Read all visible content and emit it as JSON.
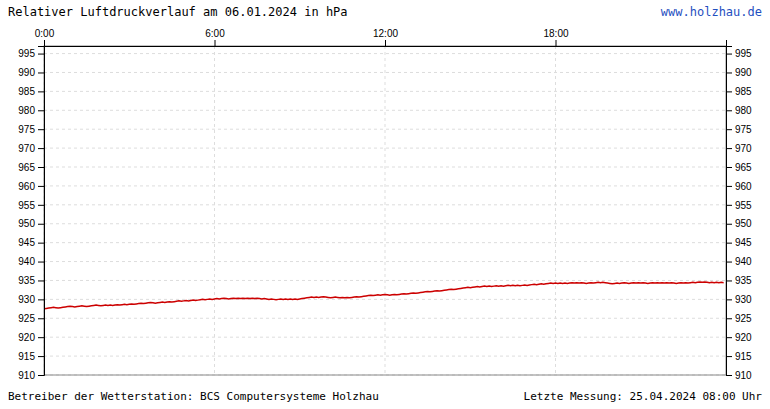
{
  "chart_data": {
    "type": "line",
    "title": "Relativer Luftdruckverlauf am 06.01.2024 in hPa",
    "annotations": [
      "www.holzhau.de",
      "Betreiber der Wetterstation: BCS Computersysteme Holzhau",
      "Letzte Messung: 25.04.2024 08:00 Uhr"
    ],
    "color": "#cc0000",
    "xlim": [
      0,
      288
    ],
    "xticks": [
      {
        "value": 0,
        "label": "0:00"
      },
      {
        "value": 72,
        "label": "6:00"
      },
      {
        "value": 144,
        "label": "12:00"
      },
      {
        "value": 216,
        "label": "18:00"
      }
    ],
    "ylim": [
      910,
      997
    ],
    "yticks": [
      910,
      915,
      920,
      925,
      930,
      935,
      940,
      945,
      950,
      955,
      960,
      965,
      970,
      975,
      980,
      985,
      990,
      995
    ],
    "y2lim": [
      910,
      997
    ],
    "y2ticks": [
      910,
      915,
      920,
      925,
      930,
      935,
      940,
      945,
      950,
      955,
      960,
      965,
      970,
      975,
      980,
      985,
      990,
      995
    ],
    "grid": true,
    "values": [
      927.5,
      927.6,
      927.7,
      927.8,
      927.9,
      927.8,
      927.7,
      927.8,
      927.9,
      928.0,
      928.1,
      928.2,
      928.1,
      928.0,
      928.1,
      928.2,
      928.3,
      928.2,
      928.1,
      928.2,
      928.3,
      928.4,
      928.5,
      928.4,
      928.3,
      928.4,
      928.5,
      928.4,
      928.5,
      928.4,
      928.5,
      928.6,
      928.5,
      928.6,
      928.7,
      928.6,
      928.7,
      928.8,
      928.7,
      928.8,
      928.9,
      929.0,
      928.9,
      929.0,
      929.1,
      929.2,
      929.1,
      929.0,
      929.1,
      929.2,
      929.3,
      929.2,
      929.3,
      929.4,
      929.3,
      929.4,
      929.5,
      929.6,
      929.5,
      929.6,
      929.7,
      929.6,
      929.7,
      929.8,
      929.7,
      929.8,
      929.9,
      930.0,
      929.9,
      930.0,
      930.1,
      930.0,
      930.1,
      930.2,
      930.1,
      930.2,
      930.3,
      930.2,
      930.1,
      930.2,
      930.3,
      930.2,
      930.3,
      930.2,
      930.3,
      930.2,
      930.3,
      930.2,
      930.3,
      930.2,
      930.3,
      930.2,
      930.1,
      930.2,
      930.1,
      930.0,
      930.1,
      930.0,
      929.9,
      930.0,
      930.1,
      930.0,
      930.1,
      930.0,
      930.1,
      930.0,
      930.1,
      930.0,
      930.1,
      930.2,
      930.3,
      930.4,
      930.5,
      930.6,
      930.5,
      930.6,
      930.5,
      930.6,
      930.7,
      930.6,
      930.5,
      930.4,
      930.5,
      930.6,
      930.5,
      930.4,
      930.5,
      930.4,
      930.5,
      930.4,
      930.5,
      930.6,
      930.7,
      930.6,
      930.7,
      930.8,
      930.9,
      931.0,
      931.1,
      931.0,
      931.1,
      931.2,
      931.1,
      931.2,
      931.3,
      931.2,
      931.1,
      931.2,
      931.3,
      931.2,
      931.3,
      931.4,
      931.5,
      931.4,
      931.5,
      931.6,
      931.7,
      931.6,
      931.7,
      931.8,
      931.9,
      932.0,
      932.1,
      932.0,
      932.1,
      932.2,
      932.3,
      932.2,
      932.3,
      932.4,
      932.5,
      932.6,
      932.7,
      932.6,
      932.7,
      932.8,
      932.9,
      933.0,
      933.1,
      933.2,
      933.1,
      933.2,
      933.3,
      933.4,
      933.3,
      933.4,
      933.5,
      933.4,
      933.5,
      933.4,
      933.5,
      933.6,
      933.5,
      933.6,
      933.5,
      933.6,
      933.7,
      933.6,
      933.7,
      933.6,
      933.7,
      933.6,
      933.7,
      933.8,
      933.7,
      933.8,
      933.9,
      934.0,
      933.9,
      934.0,
      934.1,
      934.0,
      934.1,
      934.2,
      934.3,
      934.2,
      934.3,
      934.2,
      934.3,
      934.2,
      934.3,
      934.2,
      934.3,
      934.4,
      934.3,
      934.4,
      934.3,
      934.4,
      934.3,
      934.2,
      934.3,
      934.4,
      934.3,
      934.4,
      934.5,
      934.4,
      934.5,
      934.4,
      934.3,
      934.2,
      934.1,
      934.2,
      934.3,
      934.2,
      934.3,
      934.4,
      934.3,
      934.2,
      934.3,
      934.4,
      934.3,
      934.4,
      934.3,
      934.4,
      934.3,
      934.2,
      934.3,
      934.4,
      934.3,
      934.4,
      934.3,
      934.4,
      934.3,
      934.4,
      934.3,
      934.4,
      934.3,
      934.2,
      934.3,
      934.4,
      934.3,
      934.4,
      934.3,
      934.4,
      934.5,
      934.4,
      934.5,
      934.6,
      934.5,
      934.6,
      934.5,
      934.4,
      934.5,
      934.4,
      934.5,
      934.4,
      934.5,
      934.4
    ]
  }
}
